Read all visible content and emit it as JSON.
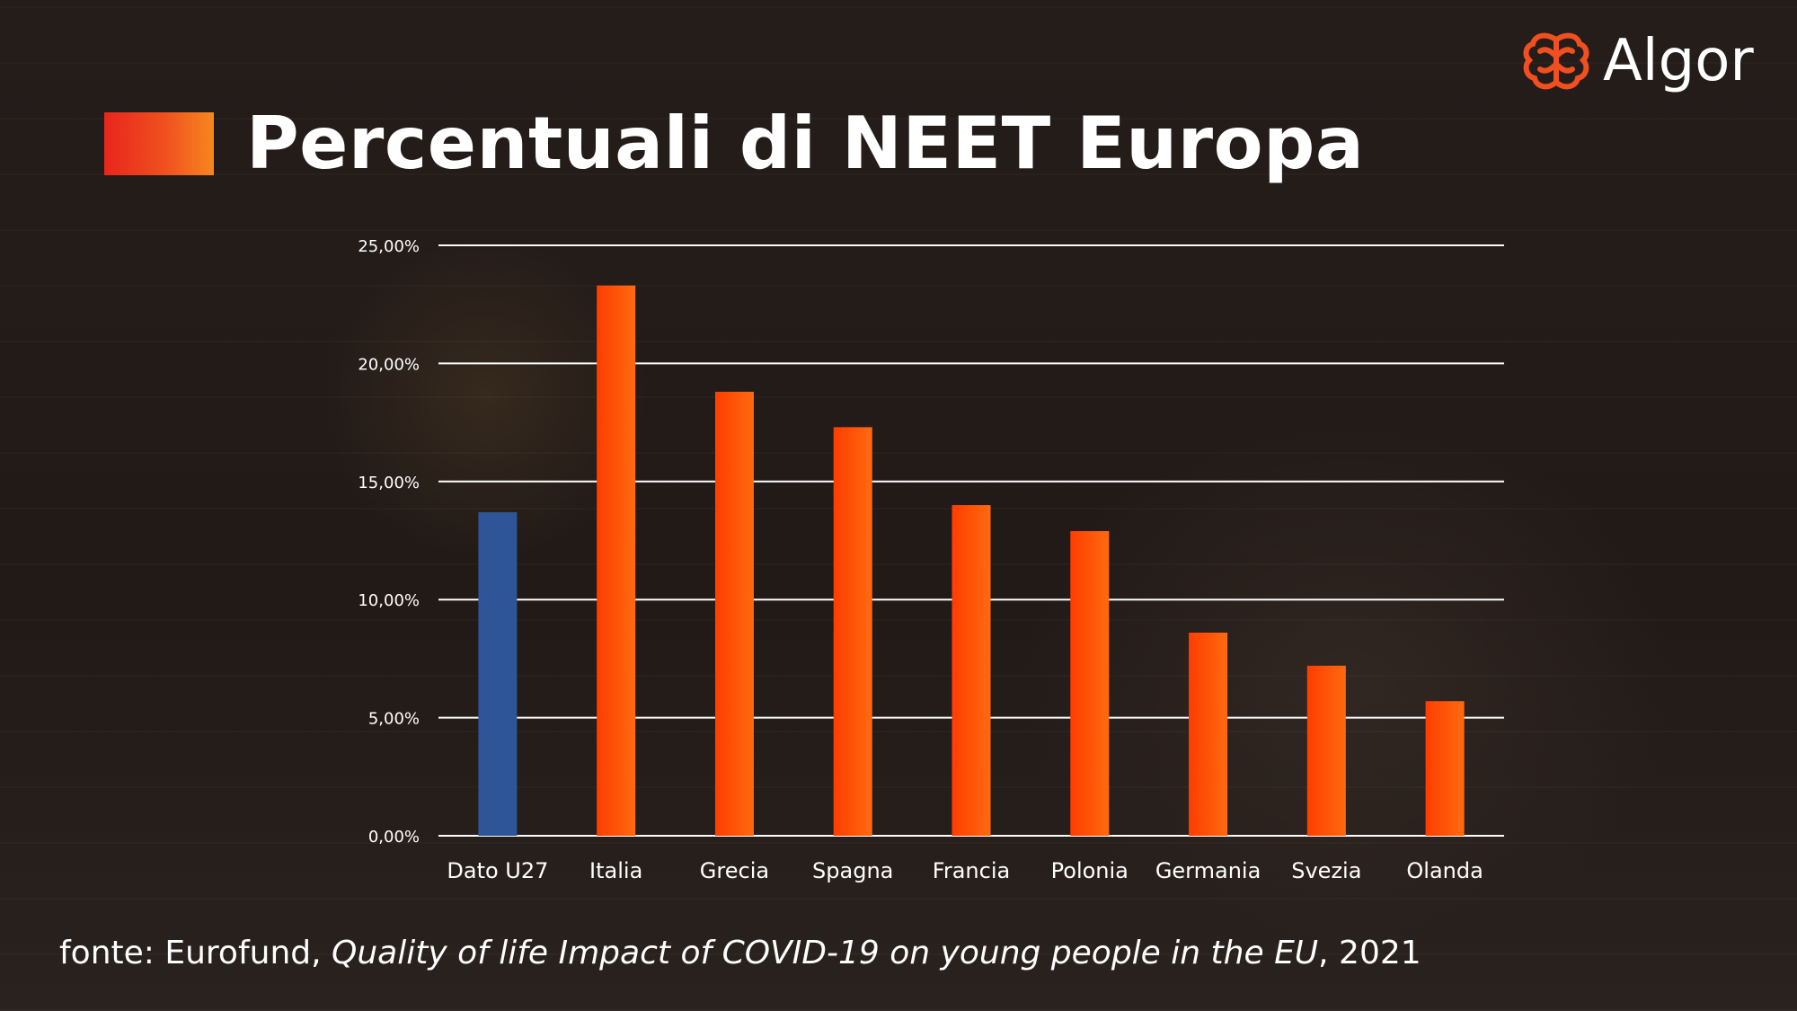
{
  "title": "Percentuali di NEET Europa",
  "logo": {
    "name": "Algor",
    "icon": "brain-icon",
    "color": "#f0501f"
  },
  "colors": {
    "highlight_bar": "#2d5597",
    "bar_start": "#ff3d00",
    "bar_end": "#ff6a10",
    "gridline": "#ffffff",
    "text": "#ffffff"
  },
  "chart_data": {
    "type": "bar",
    "title": "",
    "xlabel": "",
    "ylabel": "",
    "ylim": [
      0,
      25
    ],
    "y_ticks": [
      "0,00%",
      "5,00%",
      "10,00%",
      "15,00%",
      "20,00%",
      "25,00%"
    ],
    "grid": true,
    "categories": [
      "Dato U27",
      "Italia",
      "Grecia",
      "Spagna",
      "Francia",
      "Polonia",
      "Germania",
      "Svezia",
      "Olanda"
    ],
    "values": [
      13.7,
      23.3,
      18.8,
      17.3,
      14.0,
      12.9,
      8.6,
      7.2,
      5.7
    ],
    "highlight_category": "Dato U27"
  },
  "source": {
    "prefix": "fonte: Eurofund, ",
    "title": "Quality of life Impact of COVID-19 on young people in the EU",
    "suffix": ", 2021"
  }
}
